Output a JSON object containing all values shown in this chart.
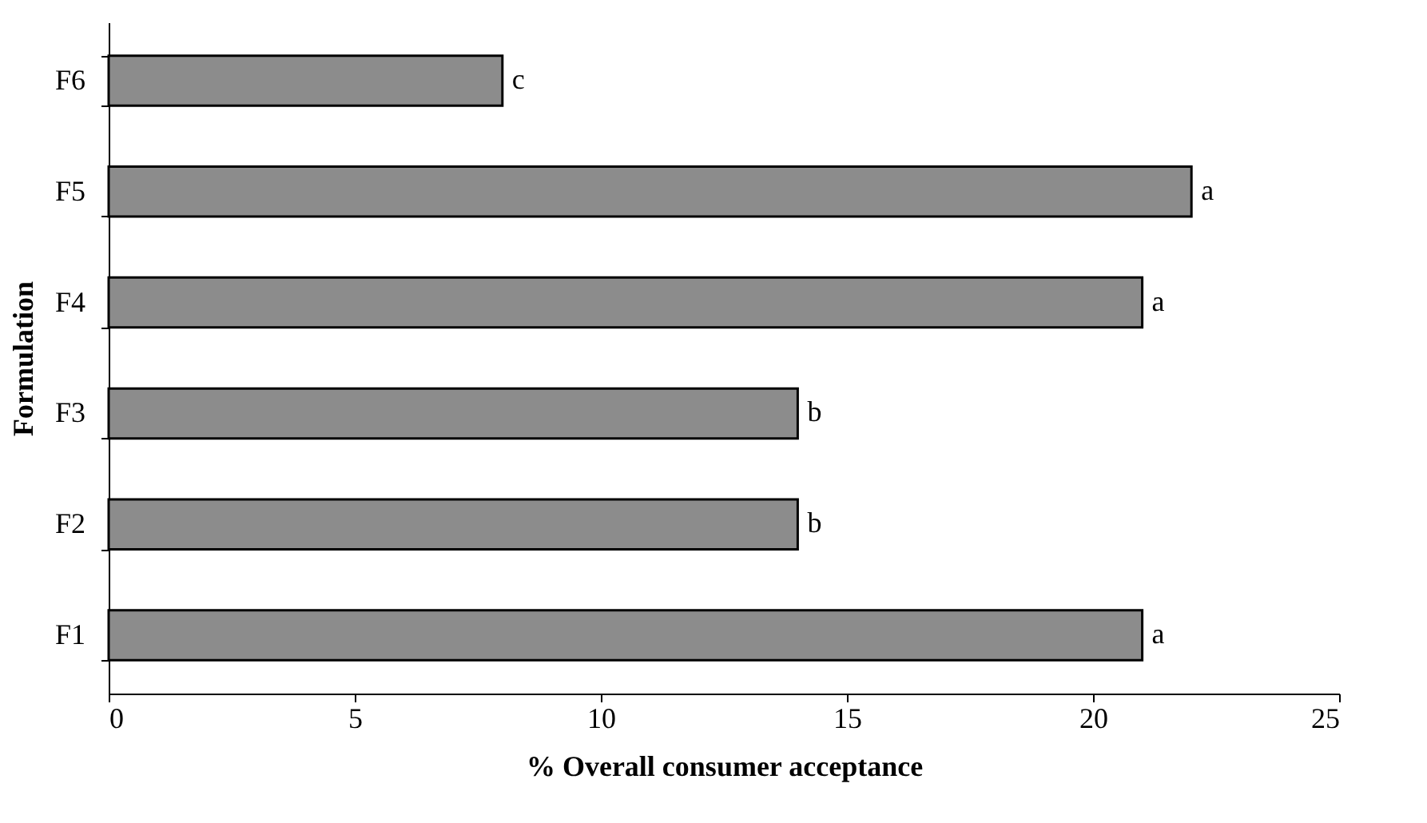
{
  "chart_data": {
    "type": "bar",
    "orientation": "horizontal",
    "xlabel": "% Overall consumer acceptance",
    "ylabel": "Formulation",
    "categories": [
      "F6",
      "F5",
      "F4",
      "F3",
      "F2",
      "F1"
    ],
    "values": [
      8,
      22,
      21,
      14,
      14,
      21
    ],
    "value_labels": [
      "c",
      "a",
      "a",
      "b",
      "b",
      "a"
    ],
    "color": "#8c8c8c",
    "xlim": [
      0,
      25
    ],
    "xticks": [
      0,
      5,
      10,
      15,
      20,
      25
    ],
    "grid": false
  }
}
